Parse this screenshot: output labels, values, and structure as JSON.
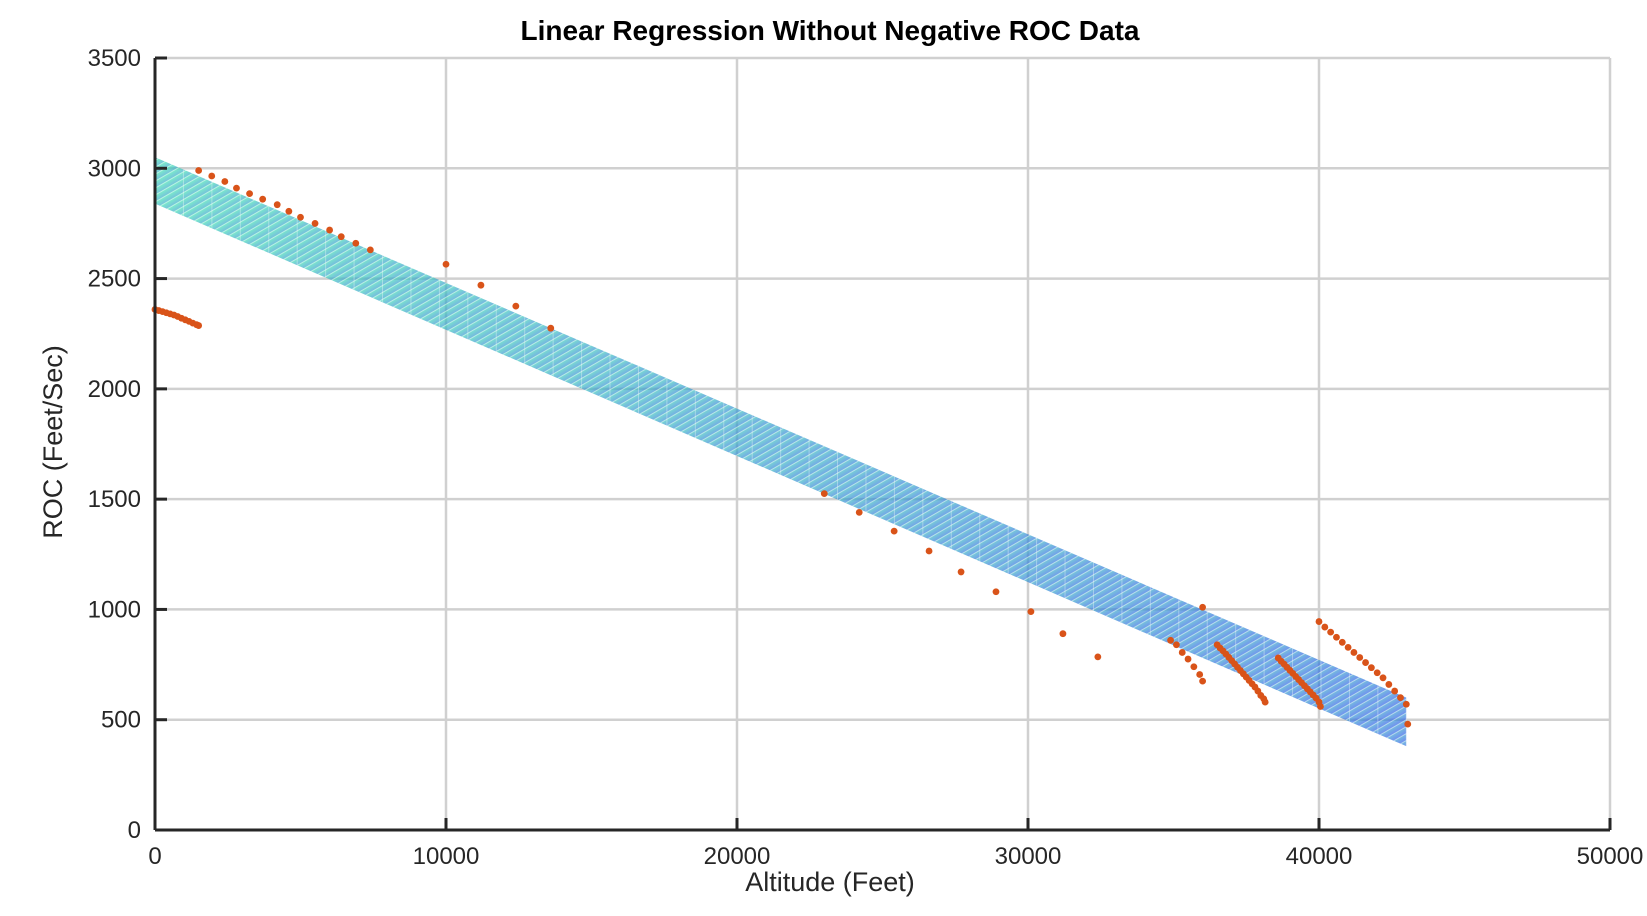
{
  "chart_data": {
    "type": "scatter",
    "title": "Linear Regression Without Negative ROC Data",
    "xlabel": "Altitude (Feet)",
    "ylabel": "ROC (Feet/Sec)",
    "xlim": [
      0,
      50000
    ],
    "ylim": [
      0,
      3500
    ],
    "xticks": [
      0,
      10000,
      20000,
      30000,
      40000,
      50000
    ],
    "yticks": [
      0,
      500,
      1000,
      1500,
      2000,
      2500,
      3000,
      3500
    ],
    "xtick_labels": [
      "0",
      "10000",
      "20000",
      "30000",
      "40000",
      "50000"
    ],
    "ytick_labels": [
      "0",
      "500",
      "1000",
      "1500",
      "2000",
      "2500",
      "3000",
      "3500"
    ],
    "grid": true,
    "regression_band": {
      "x": [
        0,
        43000
      ],
      "upper": [
        3050,
        600
      ],
      "lower": [
        2840,
        380
      ],
      "color_start": "#40e8b0",
      "color_end": "#3060e8"
    },
    "marker_color": "#d95319",
    "points": [
      [
        0,
        2360
      ],
      [
        130,
        2355
      ],
      [
        260,
        2350
      ],
      [
        390,
        2345
      ],
      [
        520,
        2340
      ],
      [
        650,
        2335
      ],
      [
        780,
        2328
      ],
      [
        910,
        2320
      ],
      [
        1040,
        2313
      ],
      [
        1170,
        2306
      ],
      [
        1300,
        2298
      ],
      [
        1430,
        2291
      ],
      [
        1500,
        2287
      ],
      [
        1500,
        2990
      ],
      [
        1950,
        2965
      ],
      [
        2400,
        2940
      ],
      [
        2800,
        2910
      ],
      [
        3250,
        2885
      ],
      [
        3700,
        2860
      ],
      [
        4200,
        2835
      ],
      [
        4600,
        2805
      ],
      [
        5000,
        2778
      ],
      [
        5500,
        2750
      ],
      [
        6000,
        2720
      ],
      [
        6400,
        2690
      ],
      [
        6900,
        2660
      ],
      [
        7400,
        2630
      ],
      [
        10000,
        2565
      ],
      [
        11200,
        2470
      ],
      [
        12400,
        2375
      ],
      [
        13600,
        2275
      ],
      [
        23000,
        1525
      ],
      [
        24200,
        1440
      ],
      [
        25400,
        1355
      ],
      [
        26600,
        1265
      ],
      [
        27700,
        1170
      ],
      [
        28900,
        1080
      ],
      [
        30100,
        990
      ],
      [
        31200,
        890
      ],
      [
        32400,
        785
      ],
      [
        34900,
        860
      ],
      [
        35100,
        840
      ],
      [
        35300,
        805
      ],
      [
        35500,
        775
      ],
      [
        35700,
        740
      ],
      [
        35900,
        705
      ],
      [
        36000,
        675
      ],
      [
        36000,
        1010
      ],
      [
        36500,
        840
      ],
      [
        36600,
        825
      ],
      [
        36700,
        812
      ],
      [
        36800,
        798
      ],
      [
        36900,
        783
      ],
      [
        37000,
        768
      ],
      [
        37100,
        753
      ],
      [
        37200,
        738
      ],
      [
        37300,
        723
      ],
      [
        37400,
        708
      ],
      [
        37500,
        693
      ],
      [
        37600,
        678
      ],
      [
        37700,
        663
      ],
      [
        37800,
        648
      ],
      [
        37900,
        630
      ],
      [
        38000,
        610
      ],
      [
        38100,
        595
      ],
      [
        38150,
        580
      ],
      [
        38600,
        780
      ],
      [
        38700,
        765
      ],
      [
        38800,
        752
      ],
      [
        38900,
        738
      ],
      [
        39000,
        724
      ],
      [
        39100,
        710
      ],
      [
        39200,
        696
      ],
      [
        39300,
        682
      ],
      [
        39400,
        668
      ],
      [
        39500,
        654
      ],
      [
        39600,
        640
      ],
      [
        39700,
        626
      ],
      [
        39800,
        612
      ],
      [
        39900,
        598
      ],
      [
        40000,
        580
      ],
      [
        40050,
        560
      ],
      [
        40000,
        945
      ],
      [
        40200,
        920
      ],
      [
        40400,
        897
      ],
      [
        40600,
        874
      ],
      [
        40800,
        851
      ],
      [
        41000,
        828
      ],
      [
        41200,
        805
      ],
      [
        41400,
        782
      ],
      [
        41600,
        759
      ],
      [
        41800,
        736
      ],
      [
        42000,
        713
      ],
      [
        42200,
        690
      ],
      [
        42400,
        660
      ],
      [
        42600,
        630
      ],
      [
        42800,
        600
      ],
      [
        43000,
        570
      ],
      [
        43050,
        480
      ]
    ]
  }
}
